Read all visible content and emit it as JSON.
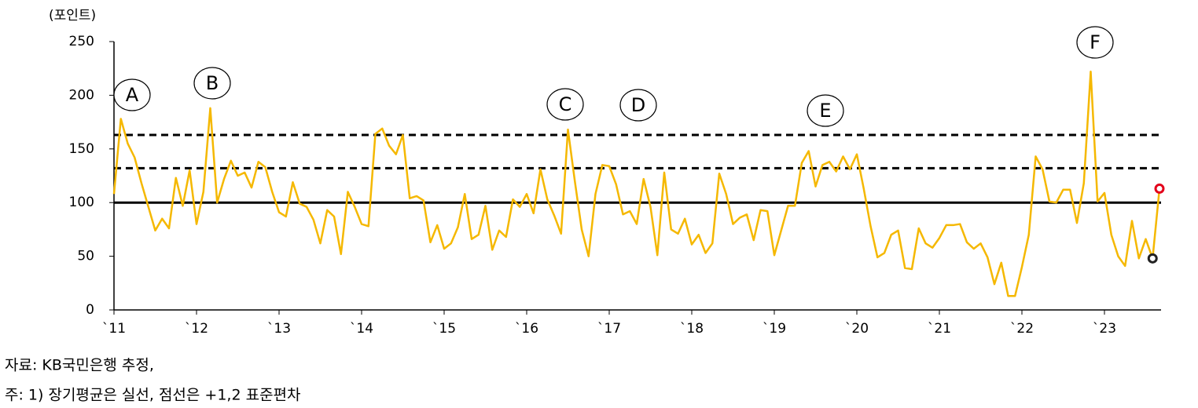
{
  "chart_data": {
    "type": "line",
    "y_label": "(포인트)",
    "categories": [
      "`11",
      null,
      null,
      null,
      null,
      null,
      null,
      null,
      null,
      null,
      null,
      null,
      "`12",
      null,
      null,
      null,
      null,
      null,
      null,
      null,
      null,
      null,
      null,
      null,
      "`13",
      null,
      null,
      null,
      null,
      null,
      null,
      null,
      null,
      null,
      null,
      null,
      "`14",
      null,
      null,
      null,
      null,
      null,
      null,
      null,
      null,
      null,
      null,
      null,
      "`15",
      null,
      null,
      null,
      null,
      null,
      null,
      null,
      null,
      null,
      null,
      null,
      "`16",
      null,
      null,
      null,
      null,
      null,
      null,
      null,
      null,
      null,
      null,
      null,
      "`17",
      null,
      null,
      null,
      null,
      null,
      null,
      null,
      null,
      null,
      null,
      null,
      "`18",
      null,
      null,
      null,
      null,
      null,
      null,
      null,
      null,
      null,
      null,
      null,
      "`19",
      null,
      null,
      null,
      null,
      null,
      null,
      null,
      null,
      null,
      null,
      null,
      "`20",
      null,
      null,
      null,
      null,
      null,
      null,
      null,
      null,
      null,
      null,
      null,
      "`21",
      null,
      null,
      null,
      null,
      null,
      null,
      null,
      null,
      null,
      null,
      null,
      "`22",
      null,
      null,
      null,
      null,
      null,
      null,
      null,
      null,
      null,
      null,
      null,
      "`23",
      null,
      null,
      null,
      null,
      null,
      null,
      null,
      null
    ],
    "series": [
      {
        "color": "#f5b800",
        "values": [
          108,
          178,
          155,
          142,
          118,
          96,
          74,
          85,
          76,
          123,
          97,
          130,
          80,
          110,
          188,
          100,
          122,
          139,
          125,
          128,
          114,
          138,
          133,
          110,
          91,
          87,
          119,
          99,
          96,
          84,
          62,
          93,
          87,
          52,
          110,
          96,
          80,
          78,
          164,
          169,
          153,
          145,
          163,
          104,
          106,
          102,
          63,
          79,
          57,
          62,
          77,
          108,
          66,
          70,
          97,
          56,
          74,
          68,
          103,
          96,
          108,
          90,
          131,
          103,
          88,
          71,
          168,
          120,
          75,
          50,
          108,
          135,
          134,
          117,
          89,
          92,
          80,
          122,
          96,
          51,
          128,
          75,
          71,
          85,
          61,
          70,
          53,
          62,
          127,
          108,
          80,
          86,
          89,
          65,
          93,
          92,
          51,
          74,
          97,
          97,
          137,
          148,
          115,
          135,
          138,
          129,
          143,
          131,
          145,
          113,
          78,
          49,
          53,
          70,
          74,
          39,
          38,
          76,
          62,
          58,
          67,
          79,
          79,
          80,
          63,
          57,
          62,
          49,
          24,
          44,
          13,
          13,
          40,
          70,
          143,
          131,
          101,
          100,
          112,
          112,
          81,
          118,
          222,
          101,
          109,
          70,
          50,
          41,
          83,
          48,
          66,
          48,
          113
        ]
      }
    ],
    "ylim": [
      0,
      250
    ],
    "yticks": [
      0,
      50,
      100,
      150,
      200,
      250
    ],
    "reference_lines": [
      {
        "value": 100,
        "style": "solid"
      },
      {
        "value": 132,
        "style": "dashed"
      },
      {
        "value": 163,
        "style": "dashed"
      }
    ],
    "markers": [
      {
        "at": 151,
        "color": "#222222"
      },
      {
        "at": 152,
        "color": "#e3001b"
      }
    ],
    "annotations": [
      "A",
      "B",
      "C",
      "D",
      "E",
      "F"
    ],
    "notes": [
      "자료: KB국민은행 추정,",
      "주: 1) 장기평균은 실선, 점선은 +1,2 표준편차"
    ]
  }
}
